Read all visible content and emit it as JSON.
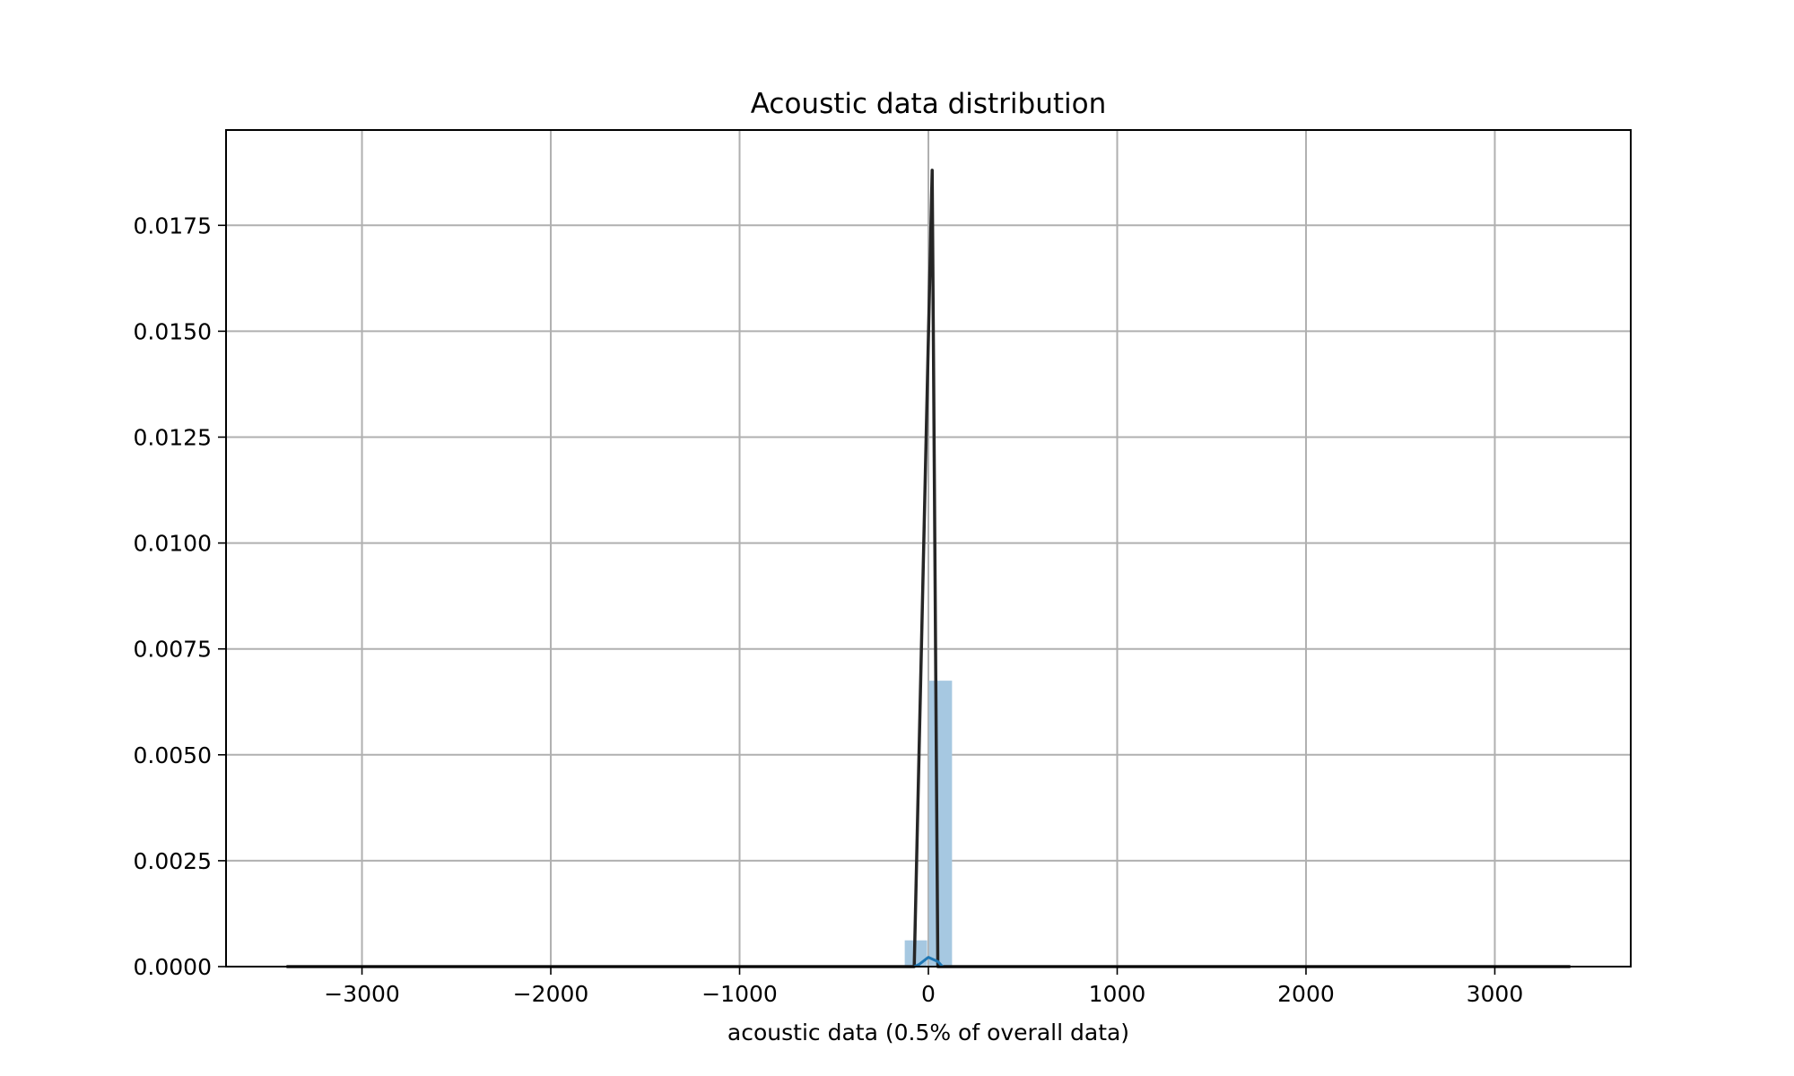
{
  "chart_data": {
    "type": "bar",
    "title": "Acoustic data distribution",
    "xlabel": "acoustic data (0.5% of overall data)",
    "ylabel": "",
    "xlim": [
      -3720,
      3720
    ],
    "ylim": [
      0,
      0.01975
    ],
    "grid": true,
    "x_ticks": [
      -3000,
      -2000,
      -1000,
      0,
      1000,
      2000,
      3000
    ],
    "x_tick_labels": [
      "−3000",
      "−2000",
      "−1000",
      "0",
      "1000",
      "2000",
      "3000"
    ],
    "y_ticks": [
      0,
      0.0025,
      0.005,
      0.0075,
      0.01,
      0.0125,
      0.015,
      0.0175
    ],
    "y_tick_labels": [
      "0.0000",
      "0.0025",
      "0.0050",
      "0.0075",
      "0.0100",
      "0.0125",
      "0.0150",
      "0.0175"
    ],
    "histogram_bins": [
      {
        "x0": -130,
        "x1": -2,
        "value": 0.00062
      },
      {
        "x0": -2,
        "x1": 130,
        "value": 0.00675
      }
    ],
    "series": [
      {
        "kind": "line",
        "color": "#262626",
        "x": [
          -3400,
          -75,
          20,
          50,
          3400
        ],
        "y": [
          0,
          0,
          0.0188,
          0,
          0
        ]
      },
      {
        "kind": "line",
        "color": "#1f77b4",
        "x": [
          -75,
          -50,
          0,
          50,
          75
        ],
        "y": [
          0,
          5e-05,
          0.00022,
          0.00012,
          0
        ]
      }
    ],
    "colors": {
      "bar": "#a6c8e1",
      "axes": "#000000",
      "grid": "#b0b0b0"
    }
  }
}
